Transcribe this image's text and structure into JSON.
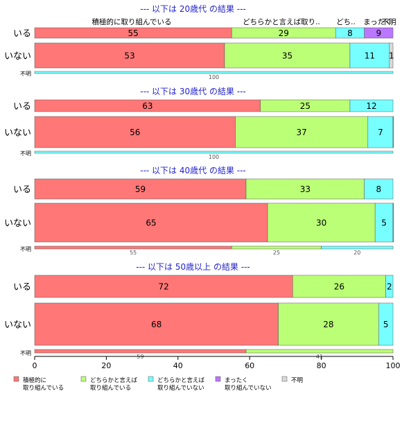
{
  "chart_data": {
    "type": "bar",
    "orientation": "horizontal-stacked-100",
    "xlim": [
      0,
      100
    ],
    "x_ticks": [
      0,
      20,
      40,
      60,
      80,
      100
    ],
    "grid": false,
    "legend_placement": "bottom",
    "column_headers": [
      "積極的に取り組んでいる",
      "どちらかと言えば取り..",
      "どち..",
      "まったく",
      "不明"
    ],
    "categories": [
      {
        "name": "積極的に\n取り組んでいる",
        "color": "#ff7777"
      },
      {
        "name": "どちらかと言えば\n取り組んでいる",
        "color": "#bbff77"
      },
      {
        "name": "どちらかと言えば\n取り組んでいない",
        "color": "#77ffff"
      },
      {
        "name": "まったく\n取り組んでいない",
        "color": "#bb77ff"
      },
      {
        "name": "不明",
        "color": "#d9d9d9"
      }
    ],
    "panels": [
      {
        "title": "--- 以下は 20歳代 の結果 ---",
        "rows": [
          {
            "label": "いる",
            "values": [
              55,
              29,
              8,
              9,
              0
            ],
            "labels": [
              "55",
              "29",
              "8",
              "9",
              ""
            ]
          },
          {
            "label": "いない",
            "values": [
              53,
              35,
              11,
              0,
              1
            ],
            "labels": [
              "53",
              "35",
              "11",
              "",
              "1"
            ]
          },
          {
            "label": "不明",
            "small": true,
            "values": [
              0,
              0,
              100,
              0,
              0
            ],
            "labels": [
              "",
              "",
              "100",
              "",
              ""
            ]
          }
        ]
      },
      {
        "title": "--- 以下は 30歳代 の結果 ---",
        "rows": [
          {
            "label": "いる",
            "values": [
              63,
              25,
              12,
              0,
              0
            ],
            "labels": [
              "63",
              "25",
              "12",
              "",
              ""
            ]
          },
          {
            "label": "いない",
            "values": [
              56,
              37,
              7,
              0.4,
              0
            ],
            "labels": [
              "56",
              "37",
              "7",
              "",
              ""
            ]
          },
          {
            "label": "不明",
            "small": true,
            "values": [
              0,
              0,
              100,
              0,
              0
            ],
            "labels": [
              "",
              "",
              "100",
              "",
              ""
            ]
          }
        ]
      },
      {
        "title": "--- 以下は 40歳代 の結果 ---",
        "rows": [
          {
            "label": "いる",
            "values": [
              59,
              33,
              8,
              0,
              0
            ],
            "labels": [
              "59",
              "33",
              "8",
              "",
              ""
            ]
          },
          {
            "label": "いない",
            "values": [
              65,
              30,
              5,
              0.5,
              0
            ],
            "labels": [
              "65",
              "30",
              "5",
              "",
              ""
            ]
          },
          {
            "label": "不明",
            "small": true,
            "values": [
              55,
              25,
              20,
              0,
              0
            ],
            "labels": [
              "55",
              "25",
              "20",
              "",
              ""
            ]
          }
        ]
      },
      {
        "title": "--- 以下は 50歳以上 の結果 ---",
        "rows": [
          {
            "label": "いる",
            "values": [
              72,
              26,
              2,
              0,
              0
            ],
            "labels": [
              "72",
              "26",
              "2",
              "",
              ""
            ]
          },
          {
            "label": "いない",
            "values": [
              68,
              28,
              5,
              0,
              0
            ],
            "labels": [
              "68",
              "28",
              "5",
              "",
              ""
            ]
          },
          {
            "label": "不明",
            "small": true,
            "values": [
              59,
              41,
              0,
              0,
              0
            ],
            "labels": [
              "59",
              "41",
              "",
              "",
              ""
            ]
          }
        ]
      }
    ]
  }
}
